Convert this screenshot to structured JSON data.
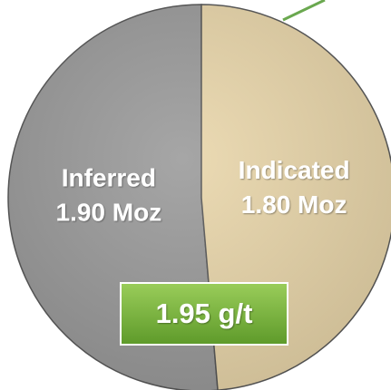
{
  "chart_data": {
    "type": "pie",
    "categories": [
      "Inferred",
      "Indicated"
    ],
    "values": [
      1.9,
      1.8
    ],
    "value_labels": [
      "1.90 Moz",
      "1.80 Moz"
    ],
    "colors": [
      "#9a9a9a",
      "#e9d6aa"
    ],
    "annotation": "1.95 g/t"
  }
}
